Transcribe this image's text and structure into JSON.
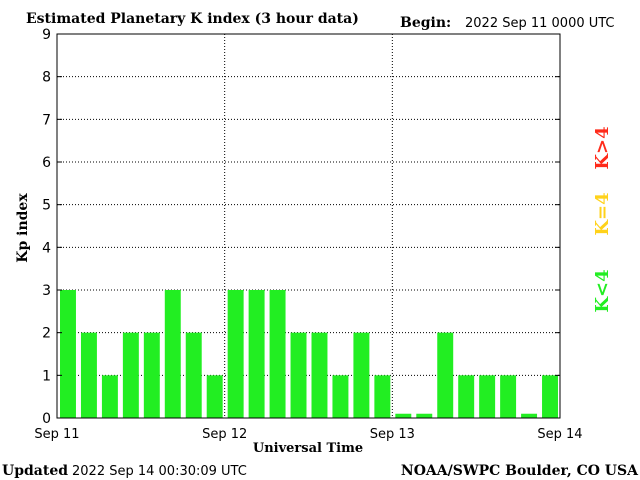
{
  "header": {
    "title": "Estimated Planetary K index (3 hour data)",
    "begin_label": "Begin:",
    "begin_value": "2022 Sep 11 0000 UTC"
  },
  "footer": {
    "updated_label": "Updated",
    "updated_value": "2022 Sep 14 00:30:09 UTC",
    "credit": "NOAA/SWPC Boulder, CO USA"
  },
  "legend": [
    {
      "label": "K>4",
      "color": "#ff2a1a"
    },
    {
      "label": "K=4",
      "color": "#ffd21a"
    },
    {
      "label": "K<4",
      "color": "#22ee22"
    }
  ],
  "chart_data": {
    "type": "bar",
    "title": "Estimated Planetary K index (3 hour data)",
    "xlabel": "Universal Time",
    "ylabel": "Kp index",
    "ylim": [
      0,
      9
    ],
    "yticks": [
      "0",
      "1",
      "2",
      "3",
      "4",
      "5",
      "6",
      "7",
      "8",
      "9"
    ],
    "xticks": [
      "Sep 11",
      "Sep 12",
      "Sep 13",
      "Sep 14"
    ],
    "grid": true,
    "bar_color": "#22ee22",
    "values": [
      3,
      2,
      1,
      2,
      2,
      3,
      2,
      1,
      3,
      3,
      3,
      2,
      2,
      1,
      2,
      1,
      0.1,
      0.1,
      2,
      1,
      1,
      1,
      0.1,
      1
    ]
  }
}
